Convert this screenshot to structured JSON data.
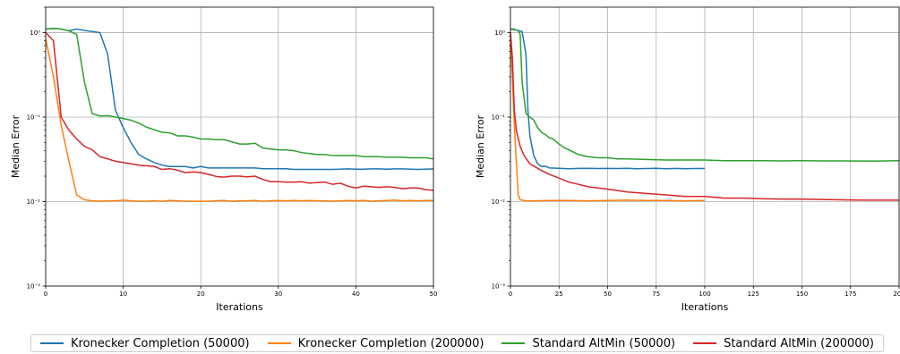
{
  "chart_data": [
    {
      "type": "line",
      "xlabel": "Iterations",
      "ylabel": "Median Error",
      "yscale": "log",
      "xlim": [
        0,
        50
      ],
      "ylim": [
        0.001,
        2
      ],
      "grid": true,
      "xticks": [
        0,
        10,
        20,
        30,
        40,
        50
      ],
      "xtick_labels": [
        "0",
        "10",
        "20",
        "30",
        "40",
        "50"
      ],
      "yticks": [
        0.001,
        0.01,
        0.1,
        1
      ],
      "ytick_labels": [
        "10⁻³",
        "10⁻²",
        "10⁻¹",
        "10⁰"
      ],
      "series": [
        {
          "name": "Kronecker Completion (50000)",
          "color": "#1f77b4",
          "x": [
            0,
            1,
            2,
            3,
            4,
            5,
            6,
            7,
            8,
            9,
            10,
            11,
            12,
            13,
            14,
            15,
            16,
            17,
            18,
            19,
            20,
            21,
            22,
            23,
            24,
            25,
            26,
            27,
            28,
            29,
            30,
            31,
            32,
            33,
            34,
            35,
            36,
            37,
            38,
            39,
            40,
            41,
            42,
            43,
            44,
            45,
            46,
            47,
            48,
            49,
            50
          ],
          "y": [
            1.1,
            1.12,
            1.1,
            1.05,
            1.1,
            1.06,
            1.03,
            1.0,
            0.55,
            0.12,
            0.075,
            0.05,
            0.036,
            0.032,
            0.029,
            0.027,
            0.026,
            0.026,
            0.026,
            0.025,
            0.026,
            0.025,
            0.025,
            0.025,
            0.025,
            0.025,
            0.025,
            0.025,
            0.0245,
            0.0245,
            0.0245,
            0.0245,
            0.024,
            0.024,
            0.024,
            0.024,
            0.024,
            0.024,
            0.0242,
            0.0244,
            0.0242,
            0.0242,
            0.0244,
            0.0244,
            0.0242,
            0.0244,
            0.0244,
            0.0242,
            0.024,
            0.0242,
            0.0244
          ]
        },
        {
          "name": "Kronecker Completion (200000)",
          "color": "#ff7f0e",
          "x": [
            0,
            1,
            2,
            3,
            4,
            5,
            6,
            7,
            8,
            9,
            10,
            11,
            12,
            13,
            14,
            15,
            16,
            17,
            18,
            19,
            20,
            21,
            22,
            23,
            24,
            25,
            26,
            27,
            28,
            29,
            30,
            31,
            32,
            33,
            34,
            35,
            36,
            37,
            38,
            39,
            40,
            41,
            42,
            43,
            44,
            45,
            46,
            47,
            48,
            49,
            50
          ],
          "y": [
            0.85,
            0.3,
            0.08,
            0.03,
            0.012,
            0.0105,
            0.0102,
            0.0101,
            0.0102,
            0.0102,
            0.0104,
            0.0102,
            0.0101,
            0.0101,
            0.0102,
            0.0101,
            0.0103,
            0.0102,
            0.0101,
            0.0101,
            0.0101,
            0.0101,
            0.0102,
            0.0103,
            0.0101,
            0.0102,
            0.0102,
            0.0103,
            0.0101,
            0.0102,
            0.0103,
            0.0102,
            0.0103,
            0.0102,
            0.0103,
            0.0102,
            0.0102,
            0.0101,
            0.0102,
            0.0103,
            0.0102,
            0.0103,
            0.0101,
            0.0102,
            0.0103,
            0.0104,
            0.0102,
            0.0103,
            0.0102,
            0.0103,
            0.0103
          ]
        },
        {
          "name": "Standard AltMin (50000)",
          "color": "#2ca02c",
          "x": [
            0,
            1,
            2,
            3,
            4,
            5,
            6,
            7,
            8,
            9,
            10,
            11,
            12,
            13,
            14,
            15,
            16,
            17,
            18,
            19,
            20,
            21,
            22,
            23,
            24,
            25,
            26,
            27,
            28,
            29,
            30,
            31,
            32,
            33,
            34,
            35,
            36,
            37,
            38,
            39,
            40,
            41,
            42,
            43,
            44,
            45,
            46,
            47,
            48,
            49,
            50
          ],
          "y": [
            1.1,
            1.12,
            1.1,
            1.05,
            0.95,
            0.26,
            0.11,
            0.103,
            0.104,
            0.1,
            0.096,
            0.092,
            0.085,
            0.076,
            0.071,
            0.066,
            0.065,
            0.06,
            0.06,
            0.058,
            0.055,
            0.055,
            0.054,
            0.054,
            0.051,
            0.048,
            0.048,
            0.049,
            0.043,
            0.042,
            0.041,
            0.041,
            0.04,
            0.038,
            0.037,
            0.036,
            0.036,
            0.035,
            0.035,
            0.035,
            0.035,
            0.034,
            0.034,
            0.034,
            0.0335,
            0.0335,
            0.0335,
            0.033,
            0.033,
            0.033,
            0.032
          ]
        },
        {
          "name": "Standard AltMin (200000)",
          "color": "#d62728",
          "x": [
            0,
            1,
            2,
            3,
            4,
            5,
            6,
            7,
            8,
            9,
            10,
            11,
            12,
            13,
            14,
            15,
            16,
            17,
            18,
            19,
            20,
            21,
            22,
            23,
            24,
            25,
            26,
            27,
            28,
            29,
            30,
            31,
            32,
            33,
            34,
            35,
            36,
            37,
            38,
            39,
            40,
            41,
            42,
            43,
            44,
            45,
            46,
            47,
            48,
            49,
            50
          ],
          "y": [
            1.0,
            0.8,
            0.1,
            0.07,
            0.055,
            0.045,
            0.041,
            0.034,
            0.032,
            0.03,
            0.029,
            0.028,
            0.027,
            0.0265,
            0.026,
            0.024,
            0.0245,
            0.0235,
            0.022,
            0.0225,
            0.022,
            0.021,
            0.0198,
            0.0195,
            0.02,
            0.02,
            0.0196,
            0.02,
            0.0183,
            0.0172,
            0.0172,
            0.017,
            0.017,
            0.0172,
            0.0165,
            0.0168,
            0.017,
            0.016,
            0.0165,
            0.0152,
            0.0145,
            0.0152,
            0.015,
            0.0147,
            0.015,
            0.0147,
            0.0142,
            0.0145,
            0.0145,
            0.0138,
            0.0136
          ]
        }
      ]
    },
    {
      "type": "line",
      "xlabel": "Iterations",
      "ylabel": "Median Error",
      "yscale": "log",
      "xlim": [
        0,
        200
      ],
      "ylim": [
        0.001,
        2
      ],
      "grid": true,
      "xticks": [
        0,
        25,
        50,
        75,
        100,
        125,
        150,
        175,
        200
      ],
      "xtick_labels": [
        "0",
        "25",
        "50",
        "75",
        "100",
        "125",
        "150",
        "175",
        "200"
      ],
      "yticks": [
        0.001,
        0.01,
        0.1,
        1
      ],
      "ytick_labels": [
        "10⁻³",
        "10⁻²",
        "10⁻¹",
        "10⁰"
      ],
      "series": [
        {
          "name": "Kronecker Completion (50000)",
          "color": "#1f77b4",
          "x": [
            0,
            2,
            4,
            6,
            8,
            9,
            10,
            12,
            14,
            16,
            18,
            20,
            25,
            30,
            35,
            40,
            45,
            50,
            55,
            60,
            65,
            70,
            75,
            80,
            85,
            90,
            95,
            100
          ],
          "y": [
            1.1,
            1.08,
            1.06,
            1.03,
            0.55,
            0.12,
            0.06,
            0.035,
            0.028,
            0.026,
            0.0262,
            0.025,
            0.0248,
            0.0245,
            0.0247,
            0.0248,
            0.0246,
            0.0247,
            0.0246,
            0.0248,
            0.0245,
            0.0246,
            0.0248,
            0.0245,
            0.0247,
            0.0245,
            0.0246,
            0.0246
          ]
        },
        {
          "name": "Kronecker Completion (200000)",
          "color": "#ff7f0e",
          "x": [
            0,
            1,
            2,
            3,
            4,
            5,
            8,
            12,
            20,
            30,
            40,
            50,
            60,
            70,
            80,
            90,
            100
          ],
          "y": [
            0.85,
            0.3,
            0.08,
            0.03,
            0.012,
            0.0105,
            0.0102,
            0.0102,
            0.0103,
            0.0103,
            0.0102,
            0.0103,
            0.0104,
            0.0103,
            0.0103,
            0.0102,
            0.0103
          ]
        },
        {
          "name": "Standard AltMin (50000)",
          "color": "#2ca02c",
          "x": [
            0,
            2,
            4,
            5,
            6,
            8,
            10,
            12,
            14,
            16,
            18,
            20,
            22,
            25,
            28,
            30,
            35,
            40,
            45,
            50,
            55,
            60,
            70,
            80,
            90,
            100,
            110,
            120,
            130,
            140,
            150,
            160,
            170,
            180,
            190,
            200
          ],
          "y": [
            1.1,
            1.1,
            1.05,
            0.95,
            0.26,
            0.11,
            0.1,
            0.092,
            0.075,
            0.066,
            0.062,
            0.057,
            0.055,
            0.048,
            0.043,
            0.041,
            0.036,
            0.034,
            0.033,
            0.033,
            0.032,
            0.032,
            0.0315,
            0.031,
            0.031,
            0.031,
            0.0305,
            0.0305,
            0.0305,
            0.0303,
            0.0305,
            0.0303,
            0.0303,
            0.0302,
            0.0302,
            0.0305
          ]
        },
        {
          "name": "Standard AltMin (200000)",
          "color": "#d62728",
          "x": [
            0,
            1,
            2,
            3,
            5,
            7,
            10,
            15,
            20,
            25,
            30,
            35,
            40,
            45,
            50,
            60,
            70,
            80,
            90,
            100,
            110,
            120,
            130,
            140,
            150,
            160,
            170,
            180,
            190,
            200
          ],
          "y": [
            1.0,
            0.5,
            0.12,
            0.07,
            0.045,
            0.035,
            0.028,
            0.024,
            0.021,
            0.019,
            0.017,
            0.016,
            0.015,
            0.0145,
            0.014,
            0.013,
            0.0125,
            0.012,
            0.0115,
            0.0115,
            0.011,
            0.011,
            0.0108,
            0.0107,
            0.0107,
            0.0106,
            0.0105,
            0.0104,
            0.0104,
            0.0104
          ]
        }
      ]
    }
  ],
  "legend": {
    "items": [
      {
        "label": "Kronecker Completion (50000)",
        "color": "#1f77b4"
      },
      {
        "label": "Kronecker Completion (200000)",
        "color": "#ff7f0e"
      },
      {
        "label": "Standard AltMin (50000)",
        "color": "#2ca02c"
      },
      {
        "label": "Standard AltMin (200000)",
        "color": "#d62728"
      }
    ]
  }
}
